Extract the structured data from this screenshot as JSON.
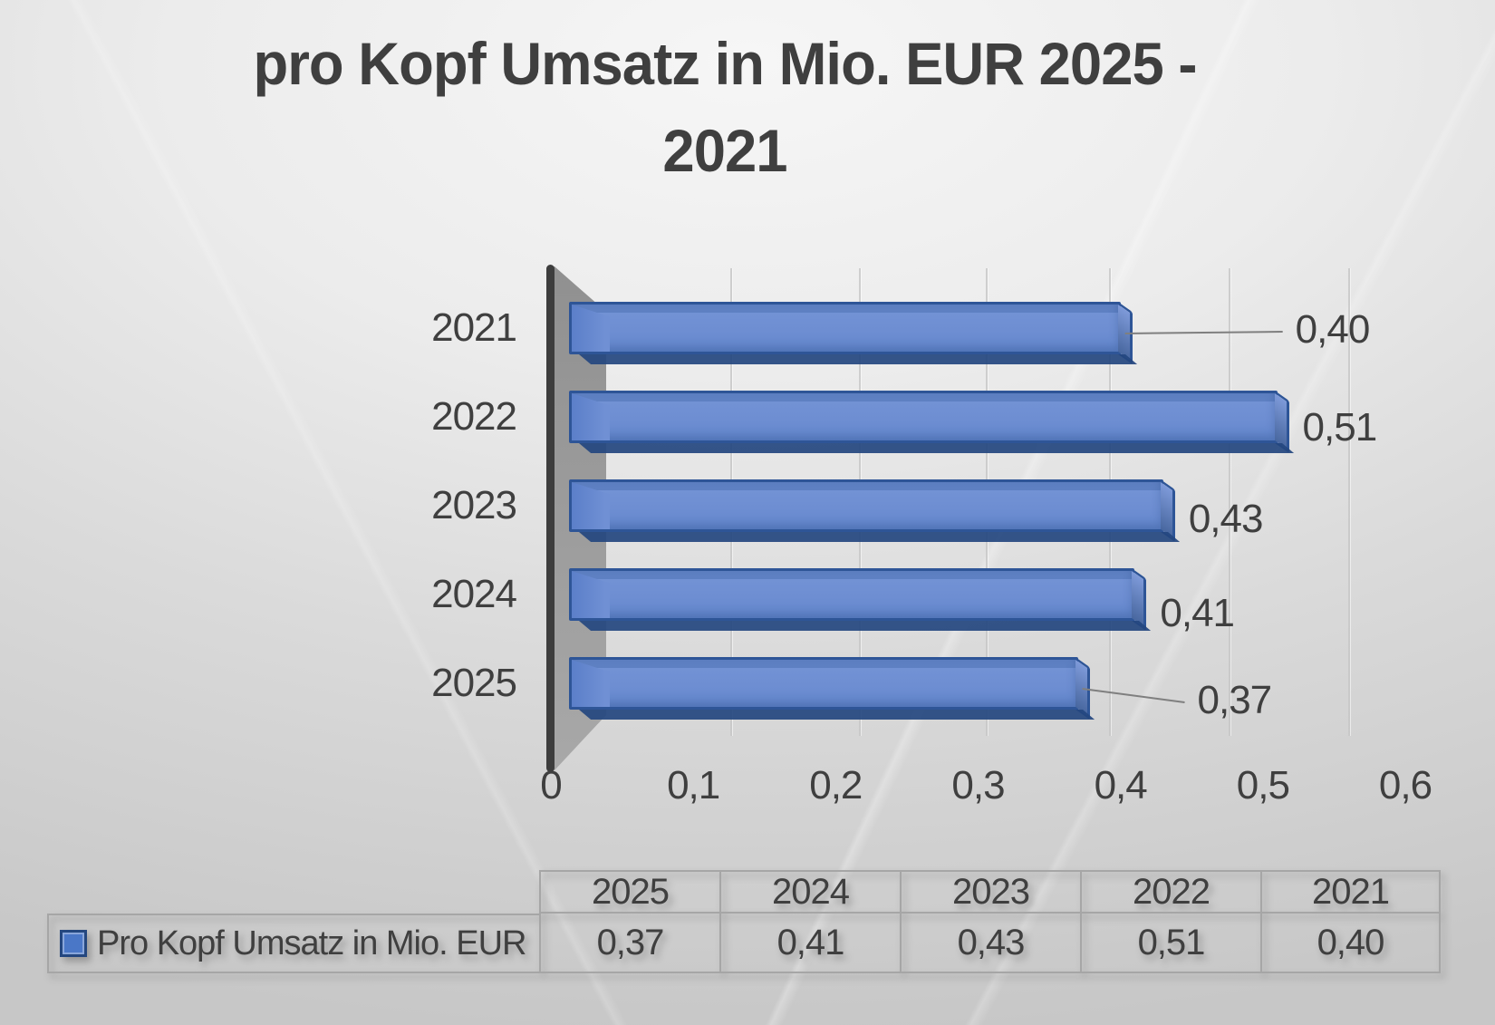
{
  "title": {
    "line1": "pro Kopf Umsatz in Mio. EUR 2025 -",
    "line2": "2021"
  },
  "chart_data": {
    "type": "bar",
    "orientation": "horizontal",
    "title": "pro Kopf Umsatz in Mio. EUR 2025 - 2021",
    "categories": [
      "2021",
      "2022",
      "2023",
      "2024",
      "2025"
    ],
    "series": [
      {
        "name": "Pro Kopf Umsatz in Mio. EUR",
        "values": [
          0.4,
          0.51,
          0.43,
          0.41,
          0.37
        ],
        "value_labels": [
          "0,40",
          "0,51",
          "0,43",
          "0,41",
          "0,37"
        ]
      }
    ],
    "xlabel": "",
    "ylabel": "",
    "xlim": [
      0,
      0.6
    ],
    "x_ticks": [
      "0",
      "0,1",
      "0,2",
      "0,3",
      "0,4",
      "0,5",
      "0,6"
    ],
    "grid": true,
    "style": "3d-bar",
    "legend_position": "bottom-data-table"
  },
  "table": {
    "legend_label": "Pro Kopf Umsatz in Mio. EUR",
    "columns": [
      "2025",
      "2024",
      "2023",
      "2022",
      "2021"
    ],
    "values": [
      "0,37",
      "0,41",
      "0,43",
      "0,51",
      "0,40"
    ]
  },
  "colors": {
    "bar_fill": "#6e8ed2",
    "bar_border": "#2e5597",
    "bar_underside": "#24477f",
    "axis_line": "#3d3d3d",
    "wall": "#9b9b9b",
    "gridline": "#c6c6c6",
    "text": "#3f3f3f",
    "leader_line": "#7f7f7f",
    "table_border": "#a6a6a6",
    "legend_swatch": "#4a77c7",
    "background_light": "#f6f6f6",
    "background_dark": "#c7c7c7"
  }
}
